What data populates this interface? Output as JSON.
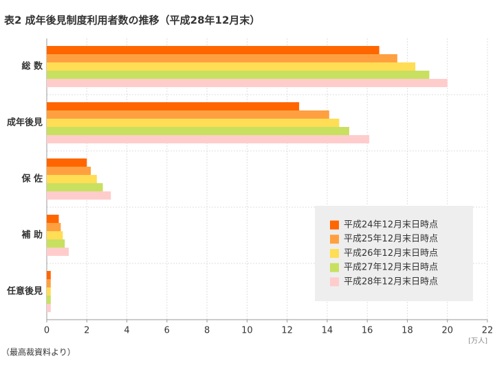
{
  "chart_data": {
    "type": "hbar",
    "title": "表2 成年後見制度利用者数の推移（平成28年12月末）",
    "categories": [
      "総 数",
      "成年後見",
      "保 佐",
      "補 助",
      "任意後見"
    ],
    "series": [
      {
        "name": "平成24年12月末日時点",
        "color": "#ff6600",
        "values": [
          16.6,
          12.6,
          2.0,
          0.6,
          0.2
        ]
      },
      {
        "name": "平成25年12月末日時点",
        "color": "#ffa040",
        "values": [
          17.5,
          14.1,
          2.2,
          0.7,
          0.2
        ]
      },
      {
        "name": "平成26年12月末日時点",
        "color": "#ffdd55",
        "values": [
          18.4,
          14.6,
          2.5,
          0.8,
          0.2
        ]
      },
      {
        "name": "平成27年12月末日時点",
        "color": "#c8e060",
        "values": [
          19.1,
          15.1,
          2.8,
          0.9,
          0.2
        ]
      },
      {
        "name": "平成28年12月末日時点",
        "color": "#ffcccc",
        "values": [
          20.0,
          16.1,
          3.2,
          1.1,
          0.2
        ]
      }
    ],
    "xlim": [
      0,
      22
    ],
    "xticks": [
      0,
      2,
      4,
      6,
      8,
      10,
      12,
      14,
      16,
      18,
      20,
      22
    ],
    "x_unit": "[万人]",
    "note": "（最高裁資料より）",
    "grid": true,
    "legend": "lower right"
  }
}
